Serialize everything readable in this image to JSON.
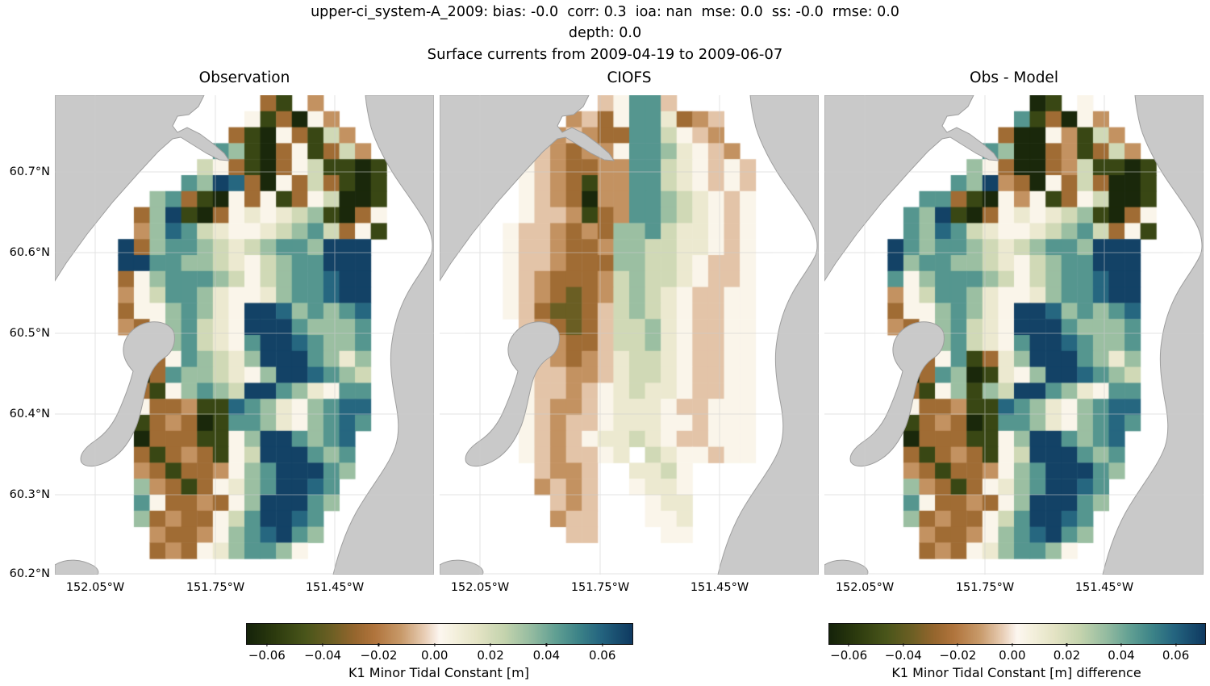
{
  "figure": {
    "title_line1": "upper-ci_system-A_2009: bias: -0.0  corr: 0.3  ioa: nan  mse: 0.0  ss: -0.0  rmse: 0.0",
    "title_line2": "depth: 0.0",
    "title_line3": "Surface currents from 2009-04-19 to 2009-06-07"
  },
  "chart_data": {
    "type": "heatmap",
    "description": "Three lat/lon map panels of K1 minor tidal constant over upper Cook Inlet; gray = land, colored cells = data",
    "x_ticks": [
      "152.05°W",
      "151.75°W",
      "151.45°W"
    ],
    "y_ticks": [
      "60.7°N",
      "60.6°N",
      "60.5°N",
      "60.4°N",
      "60.3°N",
      "60.2°N"
    ],
    "lon_range": [
      -152.15,
      -151.2
    ],
    "lat_range": [
      60.2,
      60.79
    ],
    "grid_on": true,
    "land_color": "#c9c9c9",
    "coast_color": "#9e9e9e",
    "value_scale": {
      "vmin": -0.07,
      "vmax": 0.07,
      "ticks": [
        -0.06,
        -0.04,
        -0.02,
        0.0,
        0.02,
        0.04,
        0.06
      ]
    },
    "colormap": {
      "stops": [
        [
          0.0,
          "#15230a"
        ],
        [
          0.07,
          "#2c3a0e"
        ],
        [
          0.15,
          "#49551a"
        ],
        [
          0.22,
          "#6d5f24"
        ],
        [
          0.28,
          "#96662e"
        ],
        [
          0.33,
          "#b0743c"
        ],
        [
          0.4,
          "#c89a6a"
        ],
        [
          0.46,
          "#e8cdb4"
        ],
        [
          0.5,
          "#fdf7f1"
        ],
        [
          0.54,
          "#f4f0dd"
        ],
        [
          0.6,
          "#e4e3c4"
        ],
        [
          0.67,
          "#c3d3ad"
        ],
        [
          0.74,
          "#93bba0"
        ],
        [
          0.8,
          "#62a093"
        ],
        [
          0.86,
          "#3d8488"
        ],
        [
          0.92,
          "#24647f"
        ],
        [
          1.0,
          "#0f3a61"
        ]
      ]
    },
    "value_key": {
      "a": -0.068,
      "b": -0.055,
      "c": -0.04,
      "d": -0.028,
      "e": -0.016,
      "f": -0.007,
      "g": 0.002,
      "h": 0.01,
      "i": 0.02,
      "j": 0.032,
      "k": 0.045,
      "l": 0.058,
      "m": 0.068
    },
    "grid_size": {
      "cols": 24,
      "rows": 30
    },
    "panels": [
      {
        "title": "Observation",
        "grid": [
          ".............db.e.......",
          "............gbdage......",
          "...........dbagdbie.....",
          "..........kjbadgbdie....",
          ".........igdbadgibbab...",
          "........kjmldagdidbab...",
          "......jkdbagdgbdgiaab...",
          ".....djmbadghghijbadg...",
          ".....ejlkihgghijkidgb...",
          "....mdjkkjihijkkjmmm....",
          "....mmkkjjihgijkkmmm....",
          "....dgjkkkjigijkklmm....",
          "....egikkjhgghjkklmm....",
          "....dggjkjhgmmljkjkl....",
          "....edgjkihgmmmkjjjk....",
          ".....dgjkihgkmmlkjjk....",
          ".....bdgkjihjmmmkjhj....",
          ".....adkjjihgjmmlkji....",
          ".....dbgjkjimmkjhgkk....",
          ".....gddebblkjhgjkll....",
          ".....bdedabkkjhgjklk....",
          ".....adddbbgjmmkjkl.....",
          ".....dbdedbgimmmkjk.....",
          ".....edbddegjkmmmkj.....",
          ".....jedbdghjkmmlk......",
          ".....kgddedgjmmmkj......",
          ".....jdeddgikmmlk.......",
          "......eddegjklmkj.......",
          "......dedghjkkjg........",
          "........................"
        ]
      },
      {
        "title": "CIOFS",
        "grid": [
          "..........fgkkf.........",
          "........efdgkkhdef......",
          ".......efeddkkigfe......",
          "......fedeegkkjhgfe.....",
          ".....gfeddeekkihgfgf....",
          ".....gfedbeekkihgfgf....",
          ".....gfedaeekkjihgfg....",
          ".....gffebdekkjihgfg....",
          "....gffededjjkihhgfg....",
          "....gffeddejjiihhgfg....",
          "....gffedddjjiihgffg....",
          "....gfedddeijiihgffg....",
          "....gfedcdeijihgffgg....",
          "....gfdccdfijihgffgg....",
          ".....fedcdfiijhgffgg....",
          ".....gfeddfiijhgffgg....",
          ".....gfedefhiihgffgg....",
          ".....gffeefhiihgffgg....",
          ".....gffefghihhgffgg....",
          ".....gfeefghhhgffggg....",
          ".....gfeffghhhggfggg....",
          ".....gfefghhihgffggg....",
          ".....gfeffgh.ihggfgg....",
          "......feef..hhig........",
          "......efef..ghhg........",
          ".......fef...ghh........",
          ".......eff...ggh........",
          "........ff....gg........",
          "........................",
          "........................"
        ]
      },
      {
        "title": "Obs - Model",
        "grid": [
          ".............ab.g.......",
          "............kbdage......",
          "...........daagebie.....",
          "..........kjaadebdie....",
          ".........jgdaadeibbab...",
          "........kjmedagdidaab...",
          "......kkdbagegbdgiaab...",
          ".....kjmbadghghijbadg...",
          ".....kjlkihgghijkidgb...",
          "....mkjkkjihijkkjmmm....",
          "....mjkkjjihgijkkmmm....",
          "....kgjkkkjigijkklmm....",
          "....egikkjhgghjkklmm....",
          "....dggjkjhgmmljkjkl....",
          "....edgjkihgmmmkjjjk....",
          ".....dgjkihgkmmlkjjk....",
          ".....bdgkbdhjmmmkjhj....",
          ".....adkjabhgjmmlkji....",
          ".....dbgjbjimmkjhgkk....",
          ".....gddebblkjhgjkll....",
          ".....bdedabkkjhgjklk....",
          ".....adddbbgjmmkjkl.....",
          ".....dbdedbgimmmkjk.....",
          ".....edbddegjkmmmkj.....",
          ".....jedbdghjkmmlk......",
          ".....kgddedgjmmmkj......",
          ".....jdeddgikmmlk.......",
          "......eddegjklmkj.......",
          "......dedghjkkjg........",
          "........................"
        ]
      }
    ],
    "colorbars": [
      {
        "label": "K1 Minor Tidal Constant [m]",
        "tick_labels": [
          "−0.06",
          "−0.04",
          "−0.02",
          "0.00",
          "0.02",
          "0.04",
          "0.06"
        ]
      },
      {
        "label": "K1 Minor Tidal Constant [m] difference",
        "tick_labels": [
          "−0.06",
          "−0.04",
          "−0.02",
          "0.00",
          "0.02",
          "0.04",
          "0.06"
        ]
      }
    ]
  }
}
